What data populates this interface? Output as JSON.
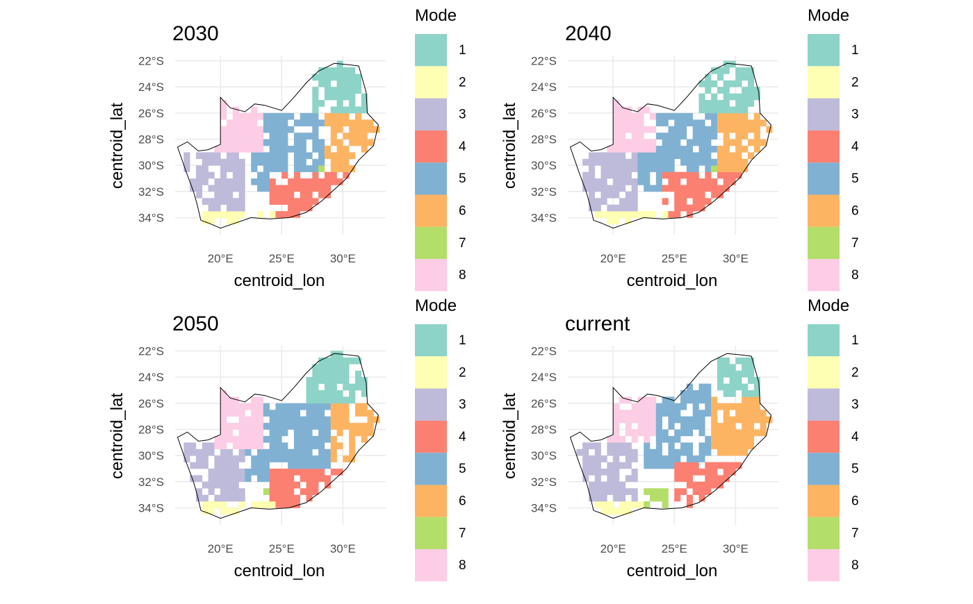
{
  "legend_title": "Mode",
  "mode_colors": {
    "1": "#8DD3C7",
    "2": "#FFFFB3",
    "3": "#BEBADA",
    "4": "#FB8072",
    "5": "#80B1D3",
    "6": "#FDB462",
    "7": "#B3DE69",
    "8": "#FCCDE5"
  },
  "chart_data": [
    {
      "type": "heatmap",
      "title": "2030",
      "xlabel": "centroid_lon",
      "ylabel": "centroid_lat",
      "x_ticks": [
        "20°E",
        "25°E",
        "30°E"
      ],
      "y_ticks": [
        "22°S",
        "24°S",
        "26°S",
        "28°S",
        "30°S",
        "32°S",
        "34°S"
      ],
      "x_tick_values": [
        20,
        25,
        30
      ],
      "y_tick_values": [
        -22,
        -24,
        -26,
        -28,
        -30,
        -32,
        -34
      ],
      "xlim": [
        16.3,
        33.5
      ],
      "ylim": [
        -35.3,
        -21.6
      ],
      "grid": true,
      "legend": {
        "title": "Mode",
        "entries": [
          "1",
          "2",
          "3",
          "4",
          "5",
          "6",
          "7",
          "8"
        ],
        "placement": "right"
      },
      "regions": [
        {
          "mode": "1",
          "lon": [
            27.5,
            32.5
          ],
          "lat": [
            -26.0,
            -22.0
          ]
        },
        {
          "mode": "6",
          "lon": [
            28.5,
            33.0
          ],
          "lat": [
            -30.5,
            -26.0
          ]
        },
        {
          "mode": "5",
          "lon": [
            22.5,
            28.5
          ],
          "lat": [
            -32.0,
            -26.0
          ]
        },
        {
          "mode": "4",
          "lon": [
            24.0,
            30.5
          ],
          "lat": [
            -34.0,
            -30.5
          ]
        },
        {
          "mode": "3",
          "lon": [
            17.0,
            22.0
          ],
          "lat": [
            -33.5,
            -29.0
          ]
        },
        {
          "mode": "2",
          "lon": [
            18.0,
            24.5
          ],
          "lat": [
            -35.0,
            -33.5
          ]
        },
        {
          "mode": "8",
          "lon": [
            19.5,
            23.5
          ],
          "lat": [
            -29.0,
            -25.0
          ]
        },
        {
          "mode": "7",
          "lon": [
            28.2,
            28.6
          ],
          "lat": [
            -30.5,
            -30.1
          ]
        }
      ]
    },
    {
      "type": "heatmap",
      "title": "2040",
      "xlabel": "centroid_lon",
      "ylabel": "centroid_lat",
      "x_ticks": [
        "20°E",
        "25°E",
        "30°E"
      ],
      "y_ticks": [
        "22°S",
        "24°S",
        "26°S",
        "28°S",
        "30°S",
        "32°S",
        "34°S"
      ],
      "x_tick_values": [
        20,
        25,
        30
      ],
      "y_tick_values": [
        -22,
        -24,
        -26,
        -28,
        -30,
        -32,
        -34
      ],
      "xlim": [
        16.3,
        33.5
      ],
      "ylim": [
        -35.3,
        -21.6
      ],
      "grid": true,
      "legend": {
        "title": "Mode",
        "entries": [
          "1",
          "2",
          "3",
          "4",
          "5",
          "6",
          "7",
          "8"
        ],
        "placement": "right"
      },
      "regions": [
        {
          "mode": "1",
          "lon": [
            27.0,
            32.5
          ],
          "lat": [
            -26.0,
            -22.0
          ]
        },
        {
          "mode": "6",
          "lon": [
            28.5,
            33.0
          ],
          "lat": [
            -30.5,
            -26.0
          ]
        },
        {
          "mode": "5",
          "lon": [
            22.0,
            28.5
          ],
          "lat": [
            -32.0,
            -26.0
          ]
        },
        {
          "mode": "4",
          "lon": [
            24.0,
            30.5
          ],
          "lat": [
            -34.0,
            -30.5
          ]
        },
        {
          "mode": "3",
          "lon": [
            17.0,
            22.0
          ],
          "lat": [
            -33.5,
            -29.0
          ]
        },
        {
          "mode": "2",
          "lon": [
            18.0,
            24.5
          ],
          "lat": [
            -35.0,
            -33.5
          ]
        },
        {
          "mode": "8",
          "lon": [
            19.5,
            23.5
          ],
          "lat": [
            -29.0,
            -25.0
          ]
        },
        {
          "mode": "7",
          "lon": [
            28.0,
            28.4
          ],
          "lat": [
            -30.5,
            -30.1
          ]
        }
      ]
    },
    {
      "type": "heatmap",
      "title": "2050",
      "xlabel": "centroid_lon",
      "ylabel": "centroid_lat",
      "x_ticks": [
        "20°E",
        "25°E",
        "30°E"
      ],
      "y_ticks": [
        "22°S",
        "24°S",
        "26°S",
        "28°S",
        "30°S",
        "32°S",
        "34°S"
      ],
      "x_tick_values": [
        20,
        25,
        30
      ],
      "y_tick_values": [
        -22,
        -24,
        -26,
        -28,
        -30,
        -32,
        -34
      ],
      "xlim": [
        16.3,
        33.5
      ],
      "ylim": [
        -35.3,
        -21.6
      ],
      "grid": true,
      "legend": {
        "title": "Mode",
        "entries": [
          "1",
          "2",
          "3",
          "4",
          "5",
          "6",
          "7",
          "8"
        ],
        "placement": "right"
      },
      "regions": [
        {
          "mode": "1",
          "lon": [
            27.0,
            32.5
          ],
          "lat": [
            -26.0,
            -22.0
          ]
        },
        {
          "mode": "6",
          "lon": [
            28.5,
            33.0
          ],
          "lat": [
            -30.5,
            -26.0
          ]
        },
        {
          "mode": "5",
          "lon": [
            22.0,
            29.0
          ],
          "lat": [
            -32.0,
            -26.0
          ]
        },
        {
          "mode": "4",
          "lon": [
            24.0,
            30.0
          ],
          "lat": [
            -34.0,
            -31.0
          ]
        },
        {
          "mode": "3",
          "lon": [
            17.0,
            22.0
          ],
          "lat": [
            -33.5,
            -29.0
          ]
        },
        {
          "mode": "2",
          "lon": [
            18.0,
            24.5
          ],
          "lat": [
            -35.0,
            -33.5
          ]
        },
        {
          "mode": "8",
          "lon": [
            19.5,
            23.5
          ],
          "lat": [
            -29.5,
            -25.0
          ]
        },
        {
          "mode": "7",
          "lon": [
            23.5,
            23.9
          ],
          "lat": [
            -33.1,
            -32.7
          ]
        }
      ]
    },
    {
      "type": "heatmap",
      "title": "current",
      "xlabel": "centroid_lon",
      "ylabel": "centroid_lat",
      "x_ticks": [
        "20°E",
        "25°E",
        "30°E"
      ],
      "y_ticks": [
        "22°S",
        "24°S",
        "26°S",
        "28°S",
        "30°S",
        "32°S",
        "34°S"
      ],
      "x_tick_values": [
        20,
        25,
        30
      ],
      "y_tick_values": [
        -22,
        -24,
        -26,
        -28,
        -30,
        -32,
        -34
      ],
      "xlim": [
        16.3,
        33.5
      ],
      "ylim": [
        -35.3,
        -21.6
      ],
      "grid": true,
      "legend": {
        "title": "Mode",
        "entries": [
          "1",
          "2",
          "3",
          "4",
          "5",
          "6",
          "7",
          "8"
        ],
        "placement": "right"
      },
      "regions": [
        {
          "mode": "1",
          "lon": [
            28.5,
            32.5
          ],
          "lat": [
            -25.5,
            -22.0
          ]
        },
        {
          "mode": "6",
          "lon": [
            28.0,
            33.0
          ],
          "lat": [
            -30.0,
            -25.5
          ]
        },
        {
          "mode": "5",
          "lon": [
            22.0,
            28.0
          ],
          "lat": [
            -31.0,
            -24.5
          ]
        },
        {
          "mode": "4",
          "lon": [
            25.0,
            30.5
          ],
          "lat": [
            -34.0,
            -30.5
          ]
        },
        {
          "mode": "3",
          "lon": [
            17.0,
            22.0
          ],
          "lat": [
            -33.5,
            -29.0
          ]
        },
        {
          "mode": "2",
          "lon": [
            18.0,
            24.0
          ],
          "lat": [
            -35.0,
            -33.5
          ]
        },
        {
          "mode": "8",
          "lon": [
            19.5,
            23.5
          ],
          "lat": [
            -29.0,
            -25.0
          ]
        },
        {
          "mode": "7",
          "lon": [
            22.5,
            24.5
          ],
          "lat": [
            -34.0,
            -32.5
          ]
        }
      ]
    }
  ]
}
